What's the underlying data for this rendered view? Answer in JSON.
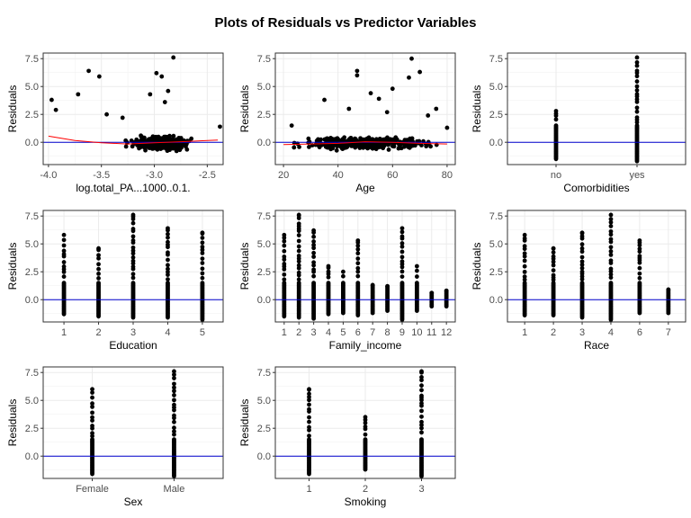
{
  "title": "Plots of Residuals vs Predictor Variables",
  "colors": {
    "hline": "#0000CD",
    "smooth": "#FF0000",
    "points": "#000000",
    "grid": "#EBEBEB",
    "border": "#333333",
    "tick_text": "#4D4D4D"
  },
  "chart_data": [
    {
      "type": "scatter",
      "xlabel": "log.total_PA...1000..0.1.",
      "ylabel": "Residuals",
      "xlim": [
        -4.05,
        -2.35
      ],
      "ylim": [
        -2.0,
        8.0
      ],
      "xticks": [
        -4.0,
        -3.5,
        -3.0,
        -2.5
      ],
      "xtick_labels": [
        "-4.0",
        "-3.5",
        "-3.0",
        "-2.5"
      ],
      "yticks": [
        0.0,
        2.5,
        5.0,
        7.5
      ],
      "ytick_labels": [
        "0.0",
        "2.5",
        "5.0",
        "7.5"
      ],
      "reference_line_y": 0,
      "smooth_line": [
        [
          -4.0,
          0.55
        ],
        [
          -3.75,
          0.15
        ],
        [
          -3.5,
          -0.05
        ],
        [
          -3.25,
          -0.15
        ],
        [
          -3.0,
          -0.05
        ],
        [
          -2.75,
          0.05
        ],
        [
          -2.5,
          0.15
        ],
        [
          -2.4,
          0.2
        ]
      ],
      "highlight_points": [
        [
          -3.97,
          3.8
        ],
        [
          -3.93,
          2.9
        ],
        [
          -3.62,
          6.4
        ],
        [
          -3.52,
          5.9
        ],
        [
          -3.72,
          4.3
        ],
        [
          -2.98,
          6.2
        ],
        [
          -2.93,
          5.9
        ],
        [
          -2.82,
          7.6
        ],
        [
          -2.87,
          4.6
        ],
        [
          -3.04,
          4.3
        ],
        [
          -2.38,
          1.4
        ],
        [
          -3.45,
          2.5
        ],
        [
          -3.3,
          2.2
        ],
        [
          -2.9,
          3.6
        ]
      ],
      "cloud": {
        "x_range": [
          -3.98,
          -2.38
        ],
        "x_center": -2.95,
        "x_spread": 0.35,
        "y_low": -1.5,
        "y_high": 1.5,
        "tail_low": -2.0,
        "count": 320
      }
    },
    {
      "type": "scatter",
      "xlabel": "Age",
      "ylabel": "Residuals",
      "xlim": [
        17,
        83
      ],
      "ylim": [
        -2.0,
        8.0
      ],
      "xticks": [
        20,
        40,
        60,
        80
      ],
      "xtick_labels": [
        "20",
        "40",
        "60",
        "80"
      ],
      "yticks": [
        0.0,
        2.5,
        5.0,
        7.5
      ],
      "ytick_labels": [
        "0.0",
        "2.5",
        "5.0",
        "7.5"
      ],
      "reference_line_y": 0,
      "smooth_line": [
        [
          20,
          -0.2
        ],
        [
          30,
          -0.15
        ],
        [
          40,
          -0.1
        ],
        [
          50,
          0.05
        ],
        [
          60,
          0.0
        ],
        [
          70,
          -0.1
        ],
        [
          80,
          -0.15
        ]
      ],
      "highlight_points": [
        [
          47,
          6.4
        ],
        [
          47,
          6.0
        ],
        [
          67,
          7.5
        ],
        [
          70,
          6.3
        ],
        [
          66,
          5.8
        ],
        [
          52,
          4.4
        ],
        [
          55,
          3.9
        ],
        [
          35,
          3.8
        ],
        [
          44,
          3.0
        ],
        [
          58,
          2.7
        ],
        [
          76,
          3.0
        ],
        [
          80,
          1.3
        ],
        [
          23,
          1.5
        ],
        [
          60,
          4.8
        ],
        [
          73,
          2.4
        ]
      ],
      "cloud": {
        "x_range": [
          20,
          80
        ],
        "x_center": 50,
        "x_spread": 30,
        "y_low": -1.5,
        "y_high": 1.5,
        "tail_low": -2.0,
        "count": 320
      }
    },
    {
      "type": "strip",
      "xlabel": "Comorbidities",
      "ylabel": "Residuals",
      "categories": [
        "no",
        "yes"
      ],
      "ylim": [
        -2.0,
        8.0
      ],
      "yticks": [
        0.0,
        2.5,
        5.0,
        7.5
      ],
      "ytick_labels": [
        "0.0",
        "2.5",
        "5.0",
        "7.5"
      ],
      "reference_line_y": 0,
      "ranges": [
        [
          -1.5,
          2.8
        ],
        [
          -1.7,
          7.6
        ]
      ]
    },
    {
      "type": "strip",
      "xlabel": "Education",
      "ylabel": "Residuals",
      "categories": [
        "1",
        "2",
        "3",
        "4",
        "5"
      ],
      "ylim": [
        -2.0,
        8.0
      ],
      "yticks": [
        0.0,
        2.5,
        5.0,
        7.5
      ],
      "ytick_labels": [
        "0.0",
        "2.5",
        "5.0",
        "7.5"
      ],
      "reference_line_y": 0,
      "ranges": [
        [
          -1.3,
          5.8
        ],
        [
          -1.5,
          4.6
        ],
        [
          -1.6,
          7.6
        ],
        [
          -1.6,
          6.4
        ],
        [
          -1.8,
          6.0
        ]
      ]
    },
    {
      "type": "strip",
      "xlabel": "Family_income",
      "ylabel": "Residuals",
      "categories": [
        "1",
        "2",
        "3",
        "4",
        "5",
        "6",
        "7",
        "8",
        "9",
        "10",
        "11",
        "12"
      ],
      "ylim": [
        -2.0,
        8.0
      ],
      "yticks": [
        0.0,
        2.5,
        5.0,
        7.5
      ],
      "ytick_labels": [
        "0.0",
        "2.5",
        "5.0",
        "7.5"
      ],
      "reference_line_y": 0,
      "ranges": [
        [
          -1.5,
          5.8
        ],
        [
          -1.6,
          7.6
        ],
        [
          -1.7,
          6.2
        ],
        [
          -1.3,
          3.0
        ],
        [
          -1.2,
          2.5
        ],
        [
          -1.4,
          5.3
        ],
        [
          -1.2,
          1.3
        ],
        [
          -1.0,
          1.2
        ],
        [
          -1.8,
          6.4
        ],
        [
          -1.0,
          3.0
        ],
        [
          -0.6,
          0.6
        ],
        [
          -0.6,
          0.8
        ]
      ]
    },
    {
      "type": "strip",
      "xlabel": "Race",
      "ylabel": "Residuals",
      "categories": [
        "1",
        "2",
        "3",
        "4",
        "6",
        "7"
      ],
      "ylim": [
        -2.0,
        8.0
      ],
      "yticks": [
        0.0,
        2.5,
        5.0,
        7.5
      ],
      "ytick_labels": [
        "0.0",
        "2.5",
        "5.0",
        "7.5"
      ],
      "reference_line_y": 0,
      "ranges": [
        [
          -1.4,
          5.8
        ],
        [
          -1.4,
          4.6
        ],
        [
          -1.6,
          6.0
        ],
        [
          -1.8,
          7.6
        ],
        [
          -1.2,
          5.3
        ],
        [
          -1.2,
          0.9
        ]
      ]
    },
    {
      "type": "strip",
      "xlabel": "Sex",
      "ylabel": "Residuals",
      "categories": [
        "Female",
        "Male"
      ],
      "ylim": [
        -2.0,
        8.0
      ],
      "yticks": [
        0.0,
        2.5,
        5.0,
        7.5
      ],
      "ytick_labels": [
        "0.0",
        "2.5",
        "5.0",
        "7.5"
      ],
      "reference_line_y": 0,
      "ranges": [
        [
          -1.6,
          6.0
        ],
        [
          -1.8,
          7.6
        ]
      ]
    },
    {
      "type": "strip",
      "xlabel": "Smoking",
      "ylabel": "Residuals",
      "categories": [
        "1",
        "2",
        "3"
      ],
      "ylim": [
        -2.0,
        8.0
      ],
      "yticks": [
        0.0,
        2.5,
        5.0,
        7.5
      ],
      "ytick_labels": [
        "0.0",
        "2.5",
        "5.0",
        "7.5"
      ],
      "reference_line_y": 0,
      "ranges": [
        [
          -1.6,
          6.0
        ],
        [
          -1.2,
          3.5
        ],
        [
          -1.8,
          7.6
        ]
      ]
    }
  ]
}
